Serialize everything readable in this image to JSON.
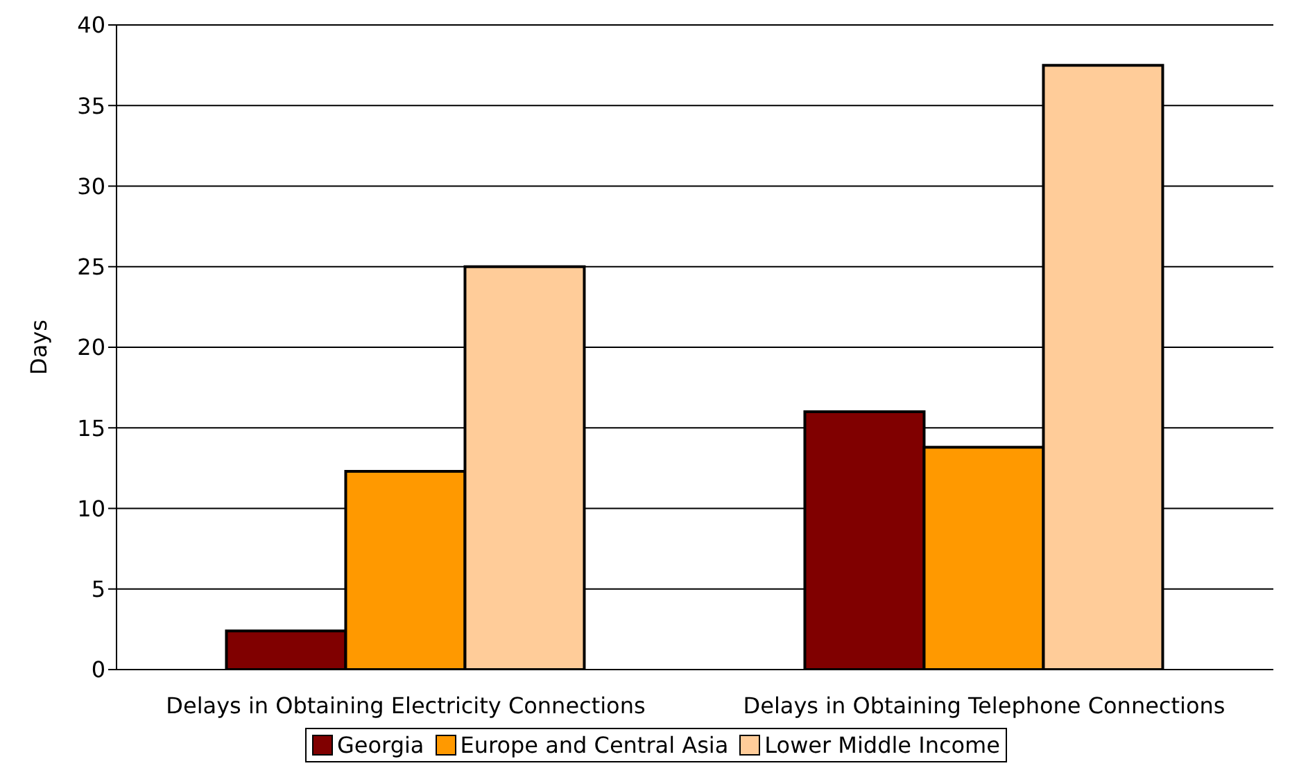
{
  "chart_data": {
    "type": "bar",
    "ylabel": "Days",
    "categories": [
      "Delays in Obtaining Electricity Connections",
      "Delays in Obtaining Telephone Connections"
    ],
    "series": [
      {
        "name": "Georgia",
        "color": "#800000",
        "values": [
          2.4,
          16.0
        ]
      },
      {
        "name": "Europe and Central Asia",
        "color": "#ff9900",
        "values": [
          12.3,
          13.8
        ]
      },
      {
        "name": "Lower Middle Income",
        "color": "#ffcc99",
        "values": [
          25.0,
          37.5
        ]
      }
    ],
    "ylim": [
      0,
      40
    ],
    "yticks": [
      0,
      5,
      10,
      15,
      20,
      25,
      30,
      35,
      40
    ],
    "grid": "y",
    "legend": "bottom"
  }
}
